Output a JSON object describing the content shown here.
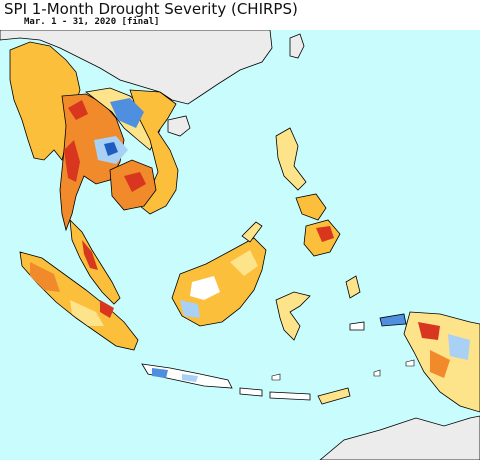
{
  "header": {
    "title": "SPI 1-Month Drought Severity (CHIRPS)",
    "subtitle": "Mar. 1 - 31, 2020 [final]"
  },
  "map": {
    "region": "Southeast Asia",
    "colors": {
      "ocean": "#c9fcfc",
      "land_no_data": "#ececec",
      "coastline": "#000000",
      "near_normal": "#ffffff",
      "abnormally_dry": "#fde38a",
      "moderate_drought": "#fbbf3c",
      "severe_drought": "#f08a2a",
      "extreme_drought": "#d8361e",
      "exceptional_drought": "#a0001c",
      "slightly_wet": "#a9d0f5",
      "moderately_wet": "#4f8fdf",
      "very_wet": "#1f5cc0"
    }
  }
}
